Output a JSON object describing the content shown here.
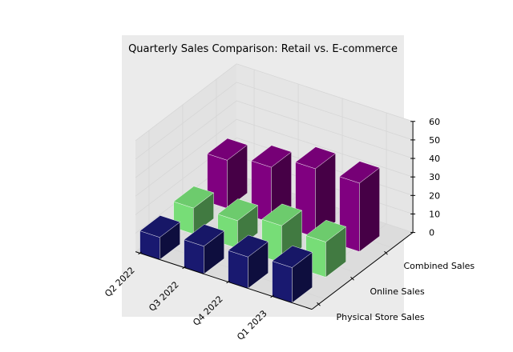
{
  "chart_data": {
    "type": "bar3d",
    "title": "Quarterly Sales Comparison: Retail vs. E-commerce",
    "categories": [
      "Q2 2022",
      "Q3 2022",
      "Q4 2022",
      "Q1 2023"
    ],
    "series": [
      {
        "name": "Physical Store Sales",
        "values": [
          12,
          15,
          17,
          19
        ],
        "color": "#191970"
      },
      {
        "name": "Online Sales",
        "values": [
          14,
          15,
          20,
          19
        ],
        "color": "#77dd77"
      },
      {
        "name": "Combined Sales",
        "values": [
          26,
          30,
          37,
          37
        ],
        "color": "#800080"
      }
    ],
    "zlim": [
      0,
      60
    ],
    "zticks": [
      0,
      10,
      20,
      30,
      40,
      50,
      60
    ],
    "xlabel": "",
    "ylabel": "",
    "zlabel": "",
    "grid": true,
    "legend": "none"
  }
}
